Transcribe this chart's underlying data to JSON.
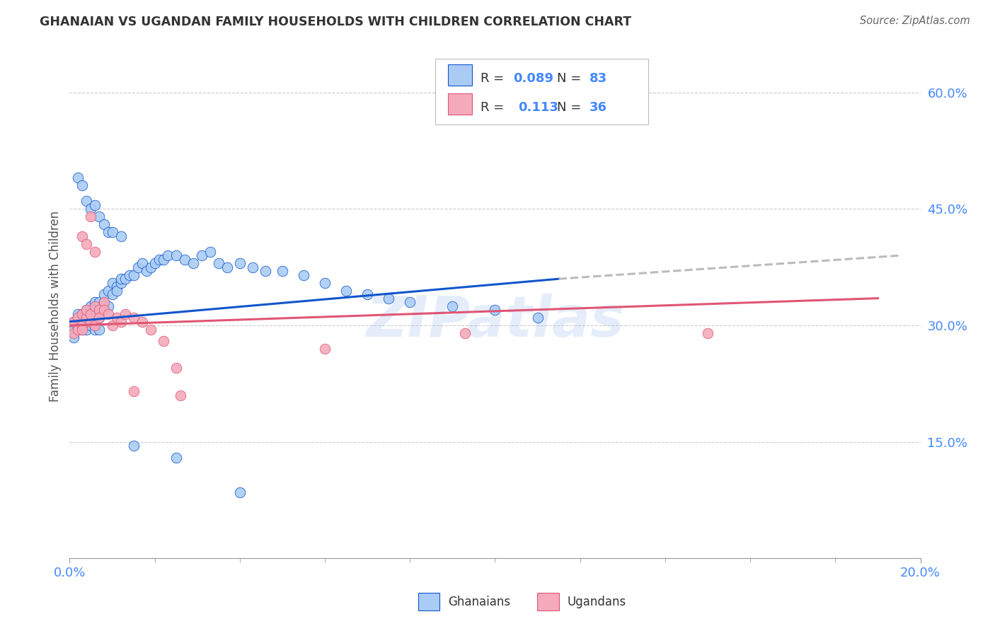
{
  "title": "GHANAIAN VS UGANDAN FAMILY HOUSEHOLDS WITH CHILDREN CORRELATION CHART",
  "source": "Source: ZipAtlas.com",
  "ylabel": "Family Households with Children",
  "x_min": 0.0,
  "x_max": 0.2,
  "y_min": 0.0,
  "y_max": 0.65,
  "y_ticks": [
    0.15,
    0.3,
    0.45,
    0.6
  ],
  "y_tick_labels": [
    "15.0%",
    "30.0%",
    "45.0%",
    "60.0%"
  ],
  "legend_r_ghanaian": "0.089",
  "legend_n_ghanaian": "83",
  "legend_r_ugandan": "0.113",
  "legend_n_ugandan": "36",
  "ghanaian_color": "#aaccf4",
  "ugandan_color": "#f4aabb",
  "trend_ghanaian_color": "#1155cc",
  "trend_ugandan_color": "#e05575",
  "trend_extend_color": "#bbbbbb",
  "background_color": "#ffffff",
  "grid_color": "#cccccc",
  "axis_label_color": "#4488ff",
  "watermark": "ZIPatlas",
  "ghanaian_x": [
    0.001,
    0.001,
    0.001,
    0.002,
    0.002,
    0.002,
    0.002,
    0.003,
    0.003,
    0.003,
    0.003,
    0.003,
    0.004,
    0.004,
    0.004,
    0.004,
    0.005,
    0.005,
    0.005,
    0.005,
    0.006,
    0.006,
    0.006,
    0.006,
    0.007,
    0.007,
    0.007,
    0.007,
    0.008,
    0.008,
    0.008,
    0.009,
    0.009,
    0.01,
    0.01,
    0.011,
    0.011,
    0.012,
    0.012,
    0.013,
    0.014,
    0.015,
    0.016,
    0.017,
    0.018,
    0.019,
    0.02,
    0.021,
    0.022,
    0.023,
    0.025,
    0.027,
    0.029,
    0.031,
    0.033,
    0.035,
    0.037,
    0.04,
    0.043,
    0.046,
    0.05,
    0.055,
    0.06,
    0.065,
    0.07,
    0.075,
    0.08,
    0.09,
    0.1,
    0.11,
    0.002,
    0.003,
    0.004,
    0.005,
    0.006,
    0.007,
    0.008,
    0.009,
    0.01,
    0.012,
    0.015,
    0.025,
    0.04
  ],
  "ghanaian_y": [
    0.295,
    0.305,
    0.285,
    0.3,
    0.31,
    0.295,
    0.315,
    0.305,
    0.315,
    0.295,
    0.31,
    0.3,
    0.31,
    0.32,
    0.305,
    0.295,
    0.325,
    0.315,
    0.3,
    0.31,
    0.33,
    0.31,
    0.295,
    0.32,
    0.32,
    0.31,
    0.295,
    0.33,
    0.33,
    0.32,
    0.34,
    0.325,
    0.345,
    0.34,
    0.355,
    0.35,
    0.345,
    0.355,
    0.36,
    0.36,
    0.365,
    0.365,
    0.375,
    0.38,
    0.37,
    0.375,
    0.38,
    0.385,
    0.385,
    0.39,
    0.39,
    0.385,
    0.38,
    0.39,
    0.395,
    0.38,
    0.375,
    0.38,
    0.375,
    0.37,
    0.37,
    0.365,
    0.355,
    0.345,
    0.34,
    0.335,
    0.33,
    0.325,
    0.32,
    0.31,
    0.49,
    0.48,
    0.46,
    0.45,
    0.455,
    0.44,
    0.43,
    0.42,
    0.42,
    0.415,
    0.145,
    0.13,
    0.085
  ],
  "ugandan_x": [
    0.001,
    0.001,
    0.002,
    0.002,
    0.003,
    0.003,
    0.003,
    0.004,
    0.004,
    0.005,
    0.005,
    0.006,
    0.006,
    0.007,
    0.007,
    0.008,
    0.008,
    0.009,
    0.01,
    0.011,
    0.012,
    0.013,
    0.015,
    0.017,
    0.019,
    0.022,
    0.025,
    0.003,
    0.004,
    0.005,
    0.006,
    0.06,
    0.093,
    0.15,
    0.015,
    0.026
  ],
  "ugandan_y": [
    0.29,
    0.305,
    0.295,
    0.31,
    0.3,
    0.315,
    0.295,
    0.31,
    0.32,
    0.305,
    0.315,
    0.3,
    0.325,
    0.32,
    0.31,
    0.33,
    0.32,
    0.315,
    0.3,
    0.31,
    0.305,
    0.315,
    0.31,
    0.305,
    0.295,
    0.28,
    0.245,
    0.415,
    0.405,
    0.44,
    0.395,
    0.27,
    0.29,
    0.29,
    0.215,
    0.21
  ],
  "trend_gh_x0": 0.0,
  "trend_gh_x1": 0.115,
  "trend_gh_x2": 0.195,
  "trend_gh_y0": 0.305,
  "trend_gh_y1": 0.36,
  "trend_gh_y2": 0.39,
  "trend_ug_x0": 0.0,
  "trend_ug_x1": 0.19,
  "trend_ug_y0": 0.3,
  "trend_ug_y1": 0.335
}
